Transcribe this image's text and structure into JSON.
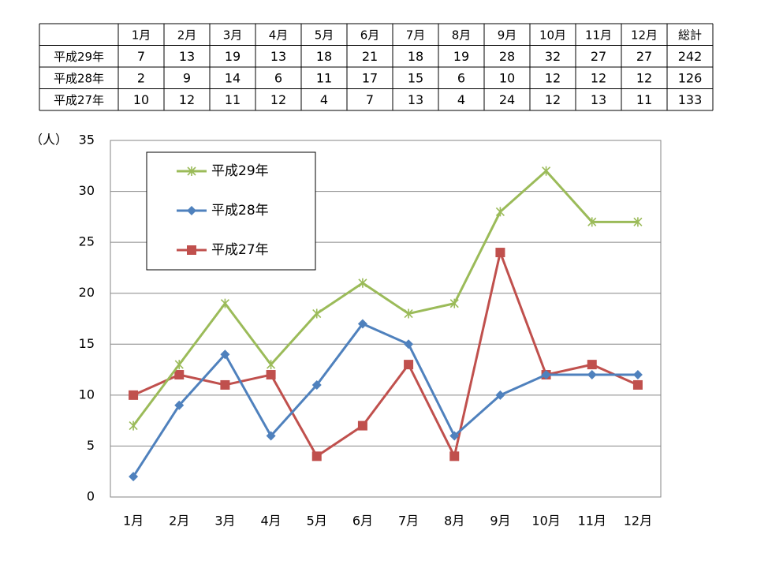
{
  "table": {
    "columns": [
      "1月",
      "2月",
      "3月",
      "4月",
      "5月",
      "6月",
      "7月",
      "8月",
      "9月",
      "10月",
      "11月",
      "12月",
      "総計"
    ],
    "rows": [
      {
        "label": "平成29年",
        "values": [
          7,
          13,
          19,
          13,
          18,
          21,
          18,
          19,
          28,
          32,
          27,
          27,
          242
        ]
      },
      {
        "label": "平成28年",
        "values": [
          2,
          9,
          14,
          6,
          11,
          17,
          15,
          6,
          10,
          12,
          12,
          12,
          126
        ]
      },
      {
        "label": "平成27年",
        "values": [
          10,
          12,
          11,
          12,
          4,
          7,
          13,
          4,
          24,
          12,
          13,
          11,
          133
        ]
      }
    ]
  },
  "chart_data": {
    "type": "line",
    "y_label": "（人）",
    "categories": [
      "1月",
      "2月",
      "3月",
      "4月",
      "5月",
      "6月",
      "7月",
      "8月",
      "9月",
      "10月",
      "11月",
      "12月"
    ],
    "series": [
      {
        "name": "平成29年",
        "color": "#9bbb59",
        "marker": "star",
        "values": [
          7,
          13,
          19,
          13,
          18,
          21,
          18,
          19,
          28,
          32,
          27,
          27
        ]
      },
      {
        "name": "平成28年",
        "color": "#4f81bd",
        "marker": "diamond",
        "values": [
          2,
          9,
          14,
          6,
          11,
          17,
          15,
          6,
          10,
          12,
          12,
          12
        ]
      },
      {
        "name": "平成27年",
        "color": "#c0504d",
        "marker": "square",
        "values": [
          10,
          12,
          11,
          12,
          4,
          7,
          13,
          4,
          24,
          12,
          13,
          11
        ]
      }
    ],
    "ylim": [
      0,
      35
    ],
    "yticks": [
      0,
      5,
      10,
      15,
      20,
      25,
      30,
      35
    ],
    "grid": true,
    "legend": "upper left"
  }
}
